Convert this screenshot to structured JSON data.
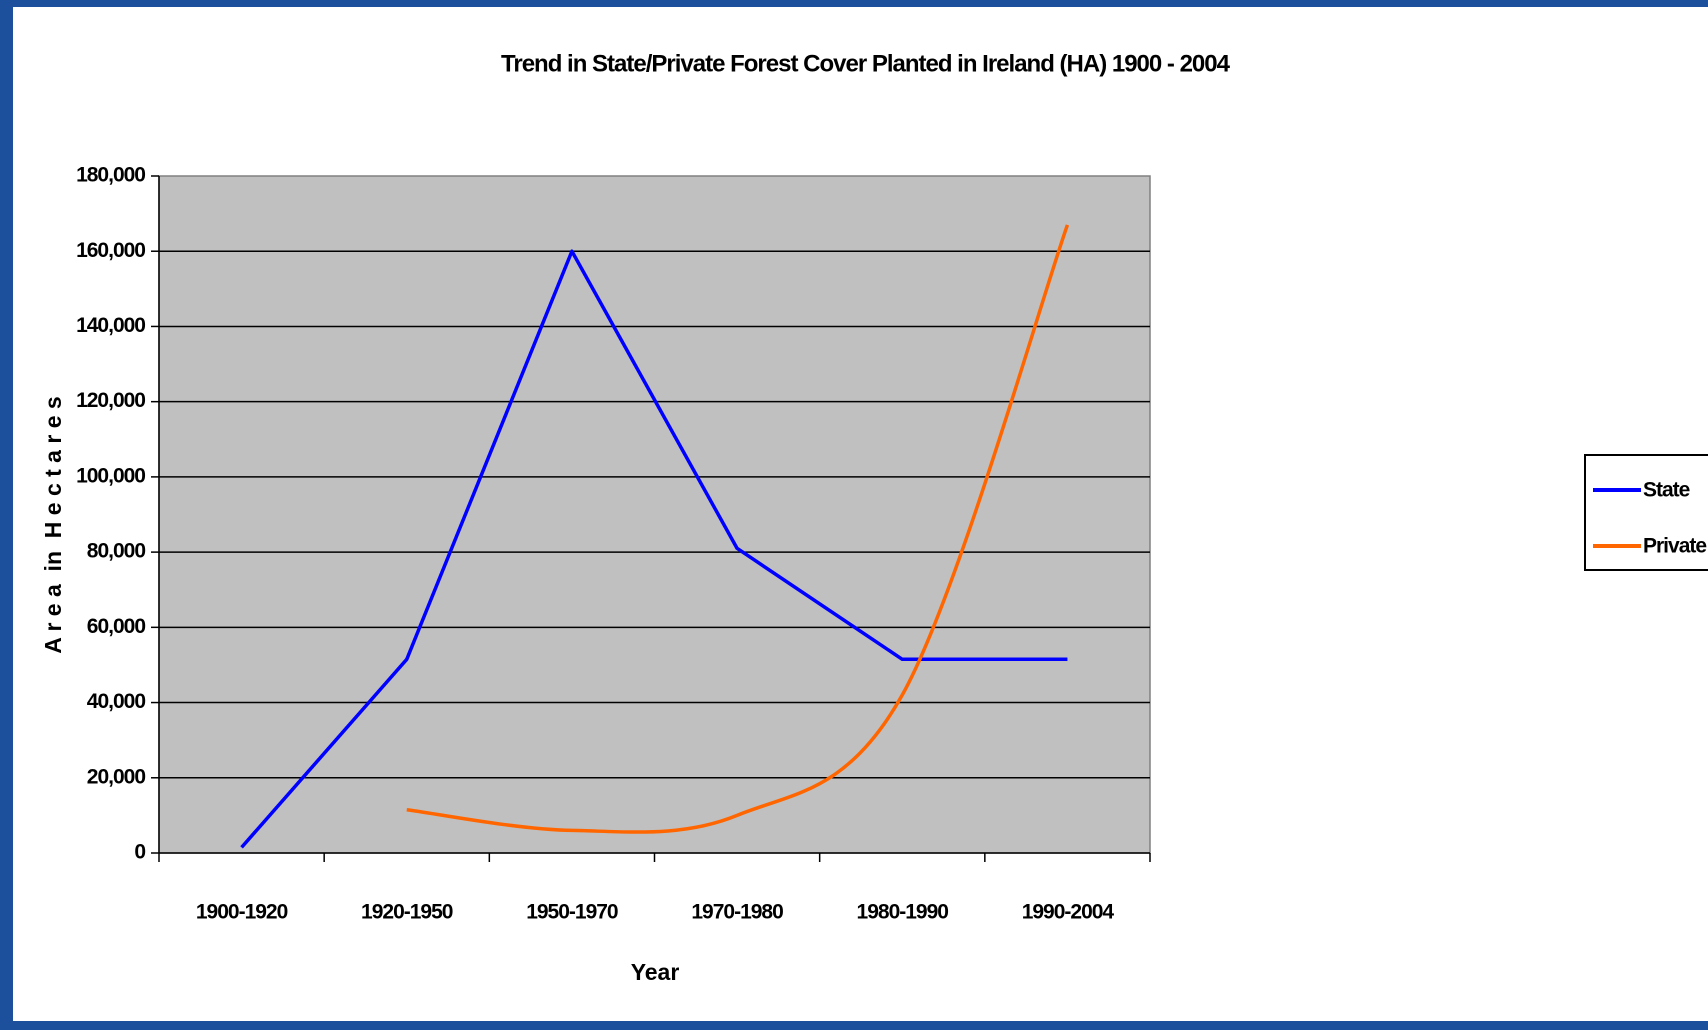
{
  "chart_data": {
    "type": "line",
    "title": "Trend in State/Private Forest Cover Planted in Ireland (HA) 1900 - 2004",
    "x_label": "Year",
    "y_label": "A r e a  in  H e c t a r e s",
    "categories": [
      "1900-1920",
      "1920-1950",
      "1950-1970",
      "1970-1980",
      "1980-1990",
      "1990-2004"
    ],
    "series": [
      {
        "name": "State",
        "color": "#0000ff",
        "values": [
          1500,
          51500,
          160000,
          81000,
          51500,
          51500
        ]
      },
      {
        "name": "Private",
        "color": "#ff6600",
        "values": [
          null,
          11500,
          6000,
          10000,
          42000,
          167000
        ]
      }
    ],
    "ylim": [
      0,
      180000
    ],
    "yticks": [
      0,
      {
        "value": 20000,
        "label": "20,000"
      },
      {
        "value": 40000,
        "label": "40,000"
      },
      {
        "value": 60000,
        "label": "60,000"
      },
      {
        "value": 80000,
        "label": "80,000"
      },
      {
        "value": 100000,
        "label": "100,000"
      },
      {
        "value": 120000,
        "label": "120,000"
      },
      {
        "value": 140000,
        "label": "140,000"
      },
      {
        "value": 160000,
        "label": "160,000"
      },
      {
        "value": 180000,
        "label": "180,000"
      }
    ],
    "grid": true,
    "legend": "right"
  }
}
